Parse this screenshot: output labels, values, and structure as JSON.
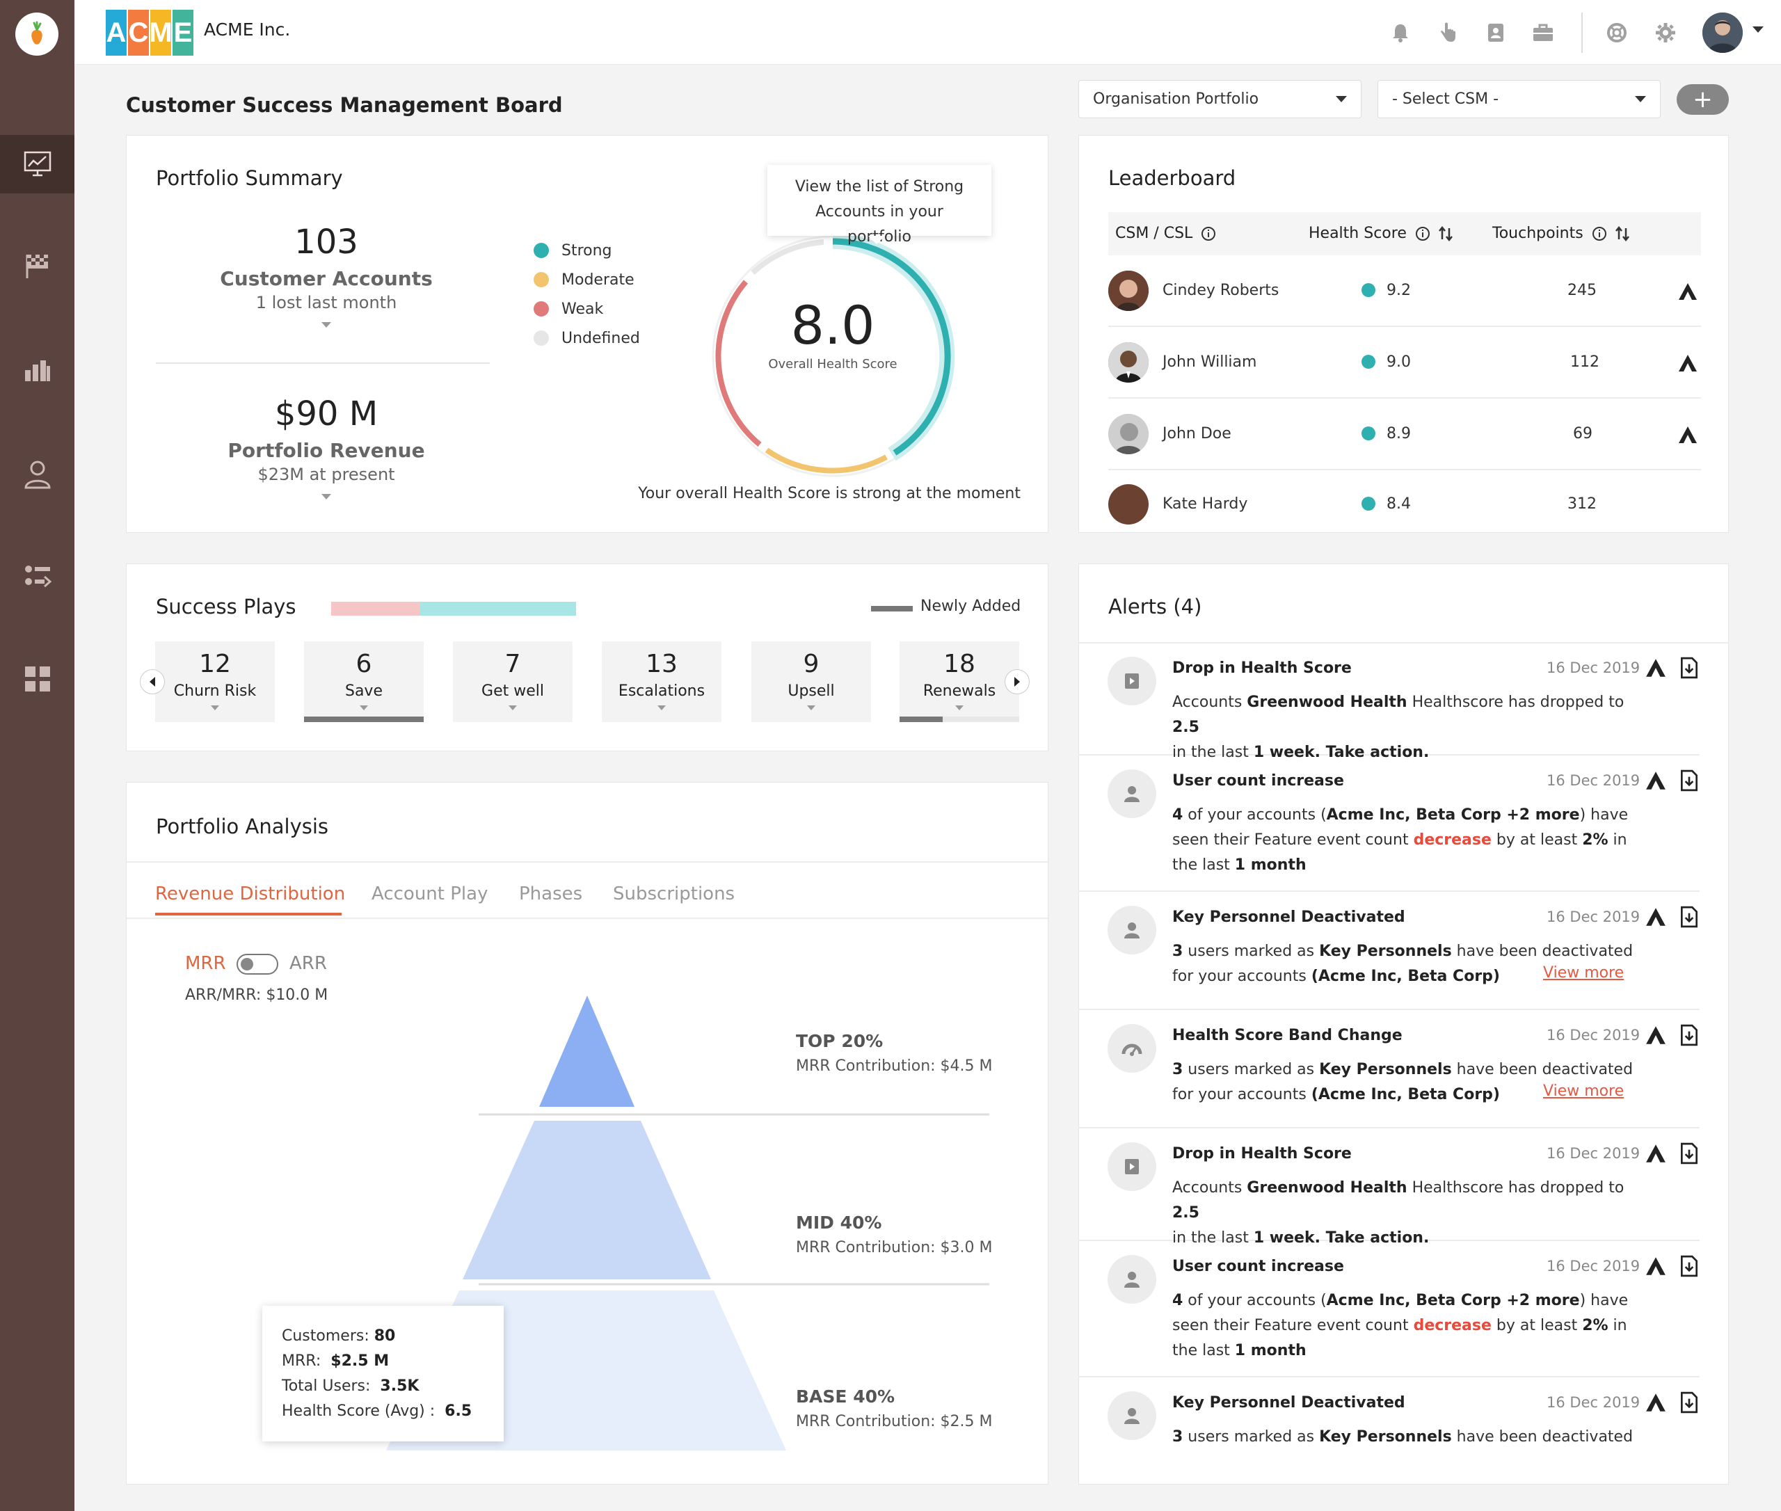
{
  "app": {
    "company": "ACME Inc.",
    "logo_letters": [
      "A",
      "C",
      "M",
      "E"
    ],
    "page_title": "Customer Success Management Board"
  },
  "filters": {
    "portfolio": "Organisation Portfolio",
    "csm": "- Select CSM -",
    "add": "+"
  },
  "sidebar": {
    "items": [
      "dashboard-icon",
      "flag-icon",
      "bar-chart-icon",
      "user-icon",
      "list-filter-icon",
      "grid-icon"
    ]
  },
  "portfolio_summary": {
    "title": "Portfolio Summary",
    "accounts_value": "103",
    "accounts_label": "Customer Accounts",
    "accounts_sub": "1 lost last month",
    "revenue_value": "$90 M",
    "revenue_label": "Portfolio Revenue",
    "revenue_sub": "$23M at present",
    "legend": [
      {
        "label": "Strong",
        "color": "#2fb0b0"
      },
      {
        "label": "Moderate",
        "color": "#f2c46d"
      },
      {
        "label": "Weak",
        "color": "#e07a7a"
      },
      {
        "label": "Undefined",
        "color": "#e6e6e6"
      }
    ],
    "tooltip": "View the list of Strong Accounts in your portfolio",
    "score": "8.0",
    "score_label": "Overall Health Score",
    "footer": "Your overall Health Score is strong at the moment"
  },
  "leaderboard": {
    "title": "Leaderboard",
    "headers": {
      "csm": "CSM / CSL",
      "health": "Health Score",
      "touch": "Touchpoints"
    },
    "rows": [
      {
        "name": "Cindey Roberts",
        "score": "9.2",
        "touchpoints": "245"
      },
      {
        "name": "John William",
        "score": "9.0",
        "touchpoints": "112"
      },
      {
        "name": "John Doe",
        "score": "8.9",
        "touchpoints": "69"
      },
      {
        "name": "Kate Hardy",
        "score": "8.4",
        "touchpoints": "312"
      }
    ]
  },
  "success_plays": {
    "title": "Success Plays",
    "newly_added": "Newly Added",
    "tiles": [
      {
        "num": "12",
        "label": "Churn Risk"
      },
      {
        "num": "6",
        "label": "Save"
      },
      {
        "num": "7",
        "label": "Get well"
      },
      {
        "num": "13",
        "label": "Escalations"
      },
      {
        "num": "9",
        "label": "Upsell"
      },
      {
        "num": "18",
        "label": "Renewals"
      }
    ]
  },
  "portfolio_analysis": {
    "title": "Portfolio Analysis",
    "tabs": [
      "Revenue Distribution",
      "Account Play",
      "Phases",
      "Subscriptions"
    ],
    "toggle_left": "MRR",
    "toggle_right": "ARR",
    "ratio": "ARR/MRR: $10.0 M",
    "tiers": [
      {
        "name": "TOP 20%",
        "contribution": "MRR Contribution: $4.5 M"
      },
      {
        "name": "MID 40%",
        "contribution": "MRR Contribution: $3.0 M"
      },
      {
        "name": "BASE 40%",
        "contribution": "MRR Contribution: $2.5 M"
      }
    ],
    "tooltip": {
      "customers_label": "Customers:",
      "customers": "80",
      "mrr_label": "MRR:",
      "mrr": "$2.5 M",
      "users_label": "Total Users:",
      "users": "3.5K",
      "health_label": "Health Score (Avg) :",
      "health": "6.5"
    }
  },
  "alerts": {
    "title": "Alerts (4)",
    "date": "16 Dec 2019",
    "view_more": "View more",
    "items": [
      {
        "title": "Drop in Health Score",
        "p1": "Accounts ",
        "b1": "Greenwood Health",
        "p2": " Healthscore has dropped to ",
        "b2": "2.5",
        "p3": "in the last ",
        "b3": "1 week. Take action."
      },
      {
        "title": "User count increase",
        "b1": "4",
        "p1": " of your accounts (",
        "b2": "Acme Inc, Beta Corp +2 more",
        "p2": ") have seen their Feature event count ",
        "r": "decrease",
        "p3": " by at least ",
        "b3": "2%",
        "p4": " in the last ",
        "b4": "1 month"
      },
      {
        "title": "Key Personnel Deactivated",
        "b1": "3",
        "p1": " users marked as ",
        "b2": "Key Personnels",
        "p2": " have been deactivated",
        "p3": "for your accounts ",
        "b3": "(Acme Inc, Beta Corp)"
      },
      {
        "title": "Health Score Band Change",
        "b1": "3",
        "p1": " users marked as ",
        "b2": "Key Personnels",
        "p2": " have been deactivated",
        "p3": "for your accounts ",
        "b3": "(Acme Inc, Beta Corp)"
      },
      {
        "title": "Drop in Health Score",
        "p1": "Accounts ",
        "b1": "Greenwood Health",
        "p2": " Healthscore has dropped to ",
        "b2": "2.5",
        "p3": "in the last ",
        "b3": "1 week. Take action."
      },
      {
        "title": "User count increase",
        "b1": "4",
        "p1": " of your accounts (",
        "b2": "Acme Inc, Beta Corp +2 more",
        "p2": ") have seen their Feature event count ",
        "r": "decrease",
        "p3": " by at least ",
        "b3": "2%",
        "p4": " in the last ",
        "b4": "1 month"
      },
      {
        "title": "Key Personnel Deactivated",
        "b1": "3",
        "p1": " users marked as ",
        "b2": "Key Personnels",
        "p2": " have been deactivated"
      }
    ]
  }
}
